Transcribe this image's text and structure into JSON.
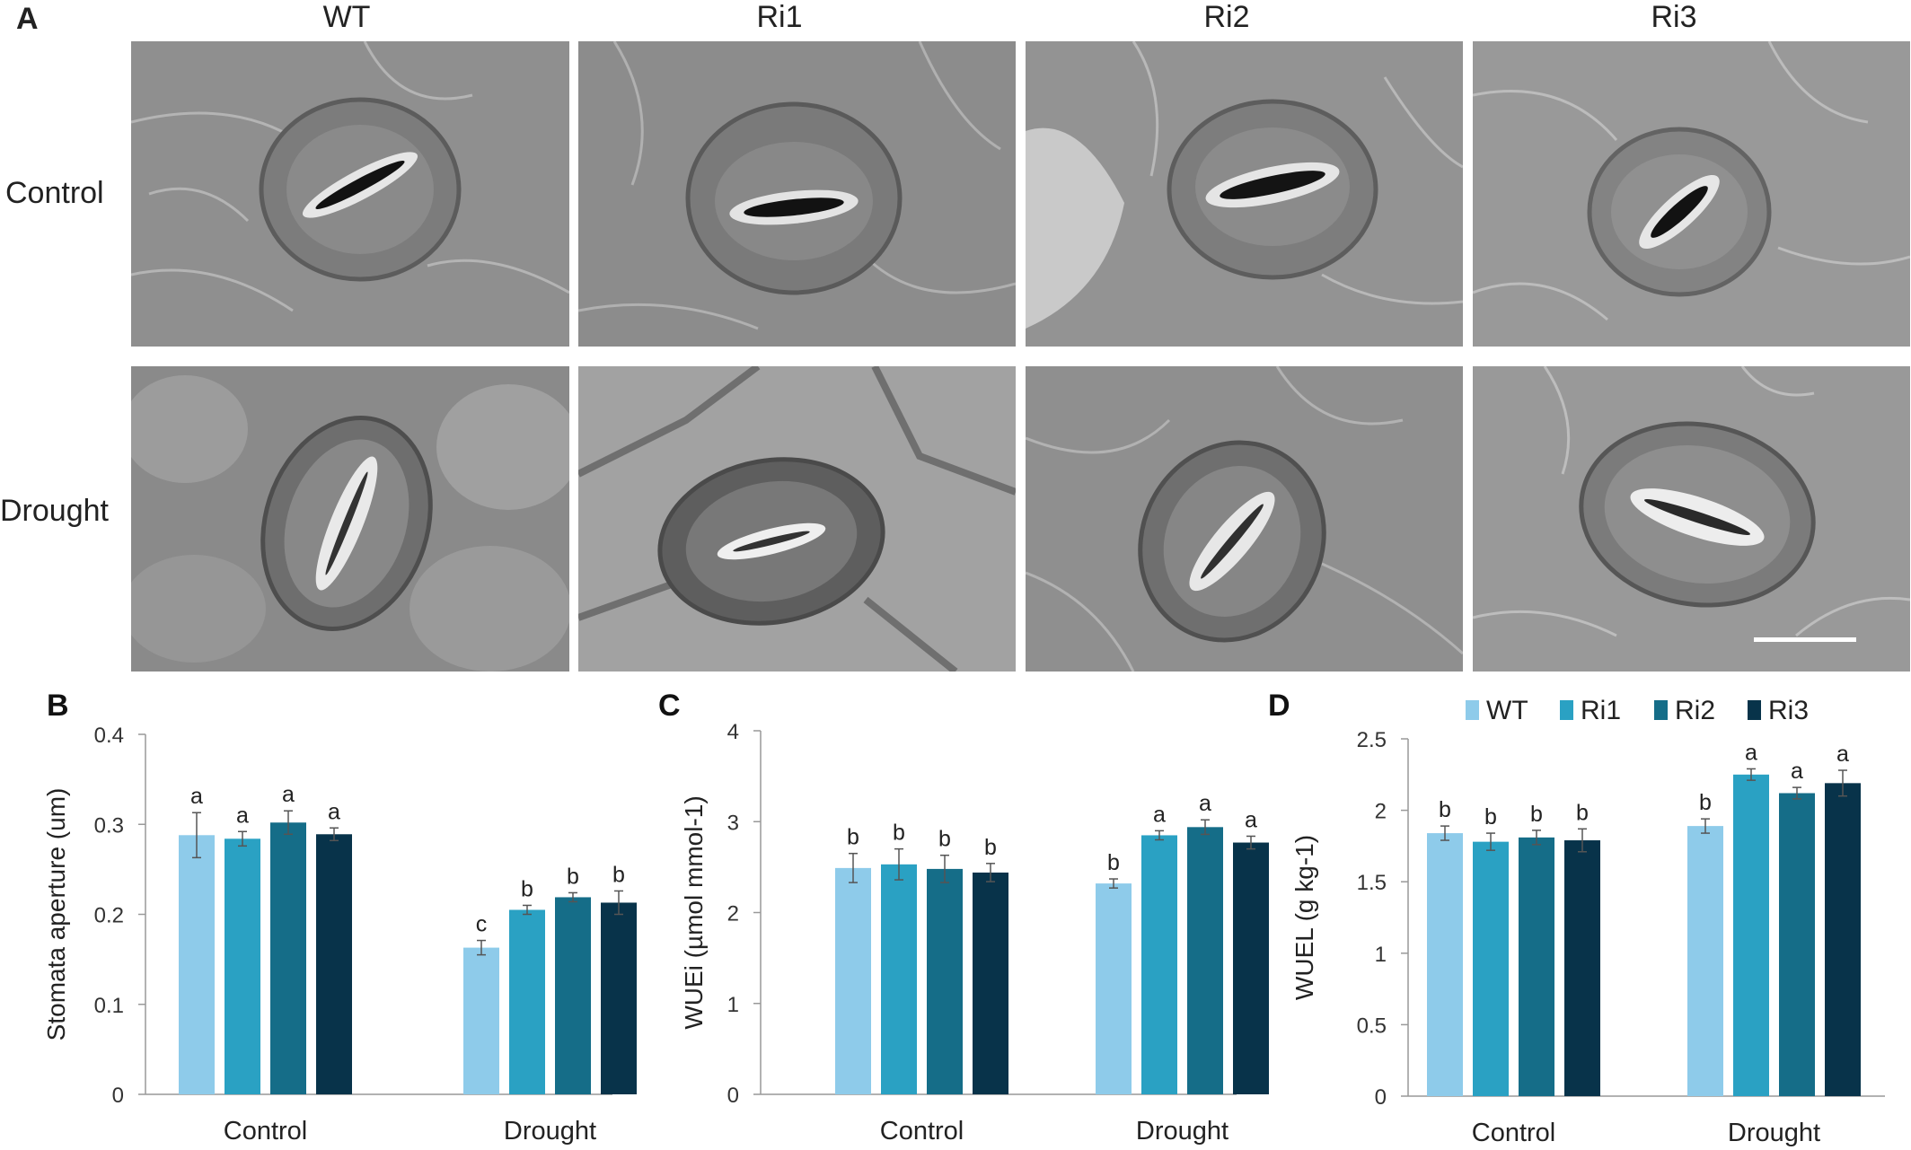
{
  "panelA": {
    "letter": "A",
    "columns": [
      "WT",
      "Ri1",
      "Ri2",
      "Ri3"
    ],
    "rows": [
      "Control",
      "Drought"
    ]
  },
  "colors": {
    "WT": "#8ecbea",
    "Ri1": "#2aa1c3",
    "Ri2": "#156d88",
    "Ri3": "#08334a"
  },
  "legend": [
    "WT",
    "Ri1",
    "Ri2",
    "Ri3"
  ],
  "chart_data": [
    {
      "type": "bar",
      "panel": "B",
      "ylabel": "Stomata aperture (um)",
      "ylim": [
        0,
        0.4
      ],
      "yticks": [
        "0",
        "0.1",
        "0.2",
        "0.3",
        "0.4"
      ],
      "categories": [
        "Control",
        "Drought"
      ],
      "series": [
        {
          "name": "WT",
          "values": [
            0.288,
            0.163
          ],
          "errors": [
            0.025,
            0.008
          ],
          "letters": [
            "a",
            "c"
          ]
        },
        {
          "name": "Ri1",
          "values": [
            0.284,
            0.205
          ],
          "errors": [
            0.008,
            0.005
          ],
          "letters": [
            "a",
            "b"
          ]
        },
        {
          "name": "Ri2",
          "values": [
            0.302,
            0.219
          ],
          "errors": [
            0.013,
            0.005
          ],
          "letters": [
            "a",
            "b"
          ]
        },
        {
          "name": "Ri3",
          "values": [
            0.289,
            0.213
          ],
          "errors": [
            0.007,
            0.013
          ],
          "letters": [
            "a",
            "b"
          ]
        }
      ]
    },
    {
      "type": "bar",
      "panel": "C",
      "ylabel": "WUEi (µmol mmol-1)",
      "ylim": [
        0,
        4
      ],
      "yticks": [
        "0",
        "1",
        "2",
        "3",
        "4"
      ],
      "categories": [
        "Control",
        "Drought"
      ],
      "series": [
        {
          "name": "WT",
          "values": [
            2.49,
            2.32
          ],
          "errors": [
            0.16,
            0.05
          ],
          "letters": [
            "b",
            "b"
          ]
        },
        {
          "name": "Ri1",
          "values": [
            2.53,
            2.85
          ],
          "errors": [
            0.17,
            0.05
          ],
          "letters": [
            "b",
            "a"
          ]
        },
        {
          "name": "Ri2",
          "values": [
            2.48,
            2.94
          ],
          "errors": [
            0.15,
            0.08
          ],
          "letters": [
            "b",
            "a"
          ]
        },
        {
          "name": "Ri3",
          "values": [
            2.44,
            2.77
          ],
          "errors": [
            0.1,
            0.07
          ],
          "letters": [
            "b",
            "a"
          ]
        }
      ]
    },
    {
      "type": "bar",
      "panel": "D",
      "ylabel": "WUEL (g kg-1)",
      "ylim": [
        0,
        2.5
      ],
      "yticks": [
        "0",
        "0.5",
        "1",
        "1.5",
        "2",
        "2.5"
      ],
      "categories": [
        "Control",
        "Drought"
      ],
      "series": [
        {
          "name": "WT",
          "values": [
            1.84,
            1.89
          ],
          "errors": [
            0.05,
            0.05
          ],
          "letters": [
            "b",
            "b"
          ]
        },
        {
          "name": "Ri1",
          "values": [
            1.78,
            2.25
          ],
          "errors": [
            0.06,
            0.04
          ],
          "letters": [
            "b",
            "a"
          ]
        },
        {
          "name": "Ri2",
          "values": [
            1.81,
            2.12
          ],
          "errors": [
            0.05,
            0.04
          ],
          "letters": [
            "b",
            "a"
          ]
        },
        {
          "name": "Ri3",
          "values": [
            1.79,
            2.19
          ],
          "errors": [
            0.08,
            0.09
          ],
          "letters": [
            "b",
            "a"
          ]
        }
      ]
    }
  ]
}
